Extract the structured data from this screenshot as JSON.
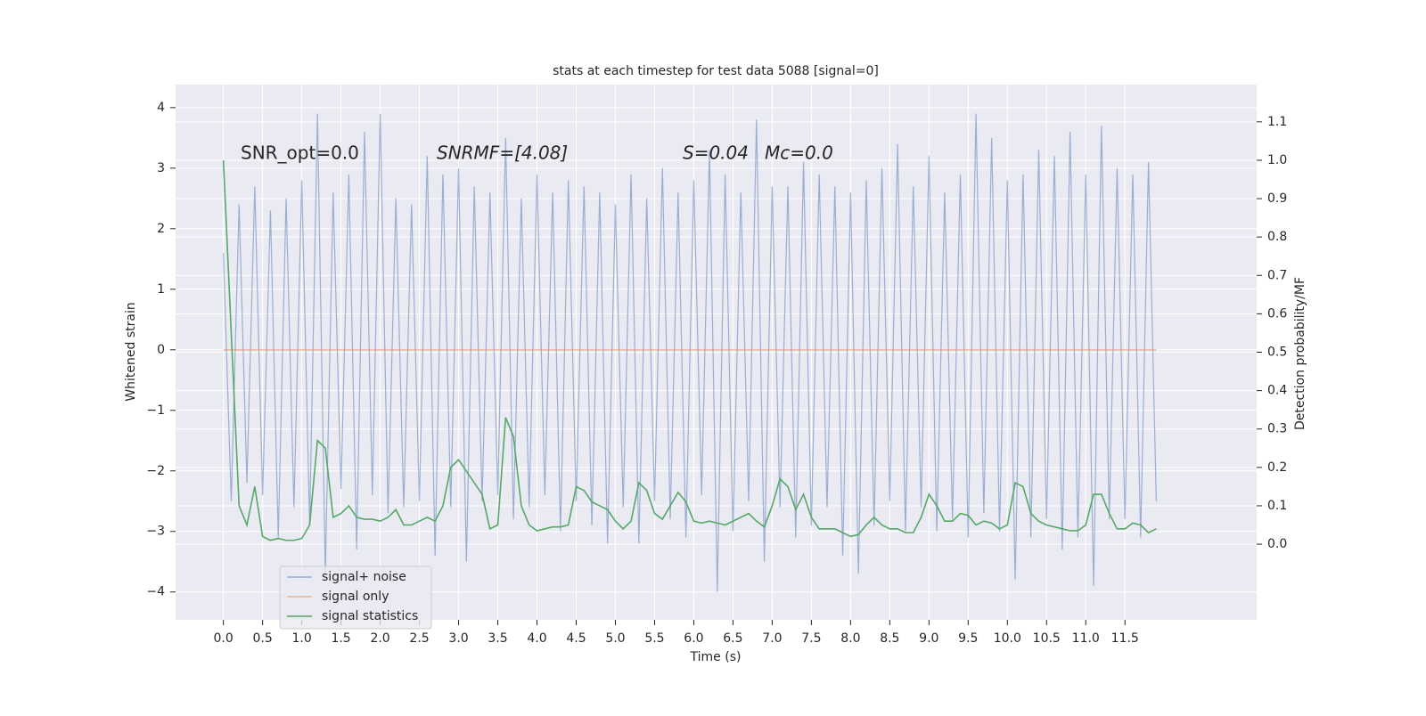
{
  "chart_data": {
    "type": "line",
    "title": "stats at each timestep for test data 5088 [signal=0]",
    "xlabel": "Time (s)",
    "ylabel": "Whitened strain",
    "y2label": "Detection probability/MF",
    "annotations": [
      "SNR_opt=0.0",
      "SNRMF=[4.08]",
      "S=0.04",
      "Mc=0.0"
    ],
    "grid": true,
    "background": "#eaeaf2",
    "legend": "lower left",
    "xlim": [
      -0.61,
      13.18
    ],
    "ylim": [
      -4.46,
      4.38
    ],
    "y2lim": [
      -0.197,
      1.197
    ],
    "xticks": [
      {
        "value": 0,
        "label": "0.0"
      },
      0.5,
      {
        "value": 1,
        "label": "1.0"
      },
      1.5,
      {
        "value": 2,
        "label": "2.0"
      },
      2.5,
      {
        "value": 3,
        "label": "3.0"
      },
      3.5,
      {
        "value": 4,
        "label": "4.0"
      },
      4.5,
      {
        "value": 5,
        "label": "5.0"
      },
      5.5,
      {
        "value": 6,
        "label": "6.0"
      },
      6.5,
      {
        "value": 7,
        "label": "7.0"
      },
      7.5,
      {
        "value": 8,
        "label": "8.0"
      },
      8.5,
      {
        "value": 9,
        "label": "9.0"
      },
      9.5,
      {
        "value": 10,
        "label": "10.0"
      },
      10.5,
      {
        "value": 11,
        "label": "11.0"
      },
      11.5
    ],
    "yticks": [
      {
        "value": -4,
        "label": "−4"
      },
      {
        "value": -3,
        "label": "−3"
      },
      {
        "value": -2,
        "label": "−2"
      },
      {
        "value": -1,
        "label": "−1"
      },
      0,
      1,
      2,
      3,
      4
    ],
    "y2ticks": [
      {
        "value": 0,
        "label": "0.0"
      },
      0.1,
      0.2,
      0.3,
      0.4,
      0.5,
      0.6,
      0.7,
      0.8,
      0.9,
      {
        "value": 1,
        "label": "1.0"
      },
      1.1
    ],
    "x": [
      0.0,
      0.1,
      0.2,
      0.3,
      0.4,
      0.5,
      0.6,
      0.7,
      0.8,
      0.9,
      1.0,
      1.1,
      1.2,
      1.3,
      1.4,
      1.5,
      1.6,
      1.7,
      1.8,
      1.9,
      2.0,
      2.1,
      2.2,
      2.3,
      2.4,
      2.5,
      2.6,
      2.7,
      2.8,
      2.9,
      3.0,
      3.1,
      3.2,
      3.3,
      3.4,
      3.5,
      3.6,
      3.7,
      3.8,
      3.9,
      4.0,
      4.1,
      4.2,
      4.3,
      4.4,
      4.5,
      4.6,
      4.7,
      4.8,
      4.9,
      5.0,
      5.1,
      5.2,
      5.3,
      5.4,
      5.5,
      5.6,
      5.7,
      5.8,
      5.9,
      6.0,
      6.1,
      6.2,
      6.3,
      6.4,
      6.5,
      6.6,
      6.7,
      6.8,
      6.9,
      7.0,
      7.1,
      7.2,
      7.3,
      7.4,
      7.5,
      7.6,
      7.7,
      7.8,
      7.9,
      8.0,
      8.1,
      8.2,
      8.3,
      8.4,
      8.5,
      8.6,
      8.7,
      8.8,
      8.9,
      9.0,
      9.1,
      9.2,
      9.3,
      9.4,
      9.5,
      9.6,
      9.7,
      9.8,
      9.9,
      10.0,
      10.1,
      10.2,
      10.3,
      10.4,
      10.5,
      10.6,
      10.7,
      10.8,
      10.9,
      11.0,
      11.1,
      11.2,
      11.3,
      11.4,
      11.5,
      11.6,
      11.7,
      11.8,
      11.9
    ],
    "series": [
      {
        "name": "signal+ noise",
        "color": "#4c72b0",
        "alpha": 0.5,
        "values": [
          1.6,
          -2.5,
          2.4,
          -2.2,
          2.7,
          -2.4,
          2.3,
          -3.1,
          2.5,
          -2.6,
          2.8,
          -2.9,
          3.9,
          -3.7,
          2.6,
          -2.3,
          2.9,
          -3.3,
          3.6,
          -2.4,
          3.9,
          -2.7,
          2.5,
          -2.6,
          2.4,
          -2.5,
          3.2,
          -3.4,
          2.9,
          -2.6,
          3.0,
          -3.5,
          2.7,
          -2.5,
          2.6,
          -2.4,
          3.5,
          -2.8,
          2.5,
          -2.6,
          2.9,
          -2.4,
          2.6,
          -3.0,
          2.8,
          -2.5,
          2.7,
          -2.9,
          2.6,
          -3.2,
          2.4,
          -2.6,
          2.9,
          -3.2,
          2.5,
          -2.5,
          3.0,
          -2.8,
          2.6,
          -3.1,
          2.8,
          -2.4,
          3.3,
          -4.0,
          2.9,
          -3.0,
          2.6,
          -2.5,
          3.8,
          -3.5,
          2.7,
          -2.6,
          2.7,
          -3.1,
          3.1,
          -2.9,
          2.9,
          -2.6,
          2.7,
          -3.4,
          2.6,
          -3.7,
          2.8,
          -2.9,
          3.0,
          -2.5,
          3.4,
          -3.0,
          2.7,
          -2.6,
          3.2,
          -3.0,
          2.6,
          -2.8,
          2.9,
          -3.1,
          3.9,
          -2.7,
          3.5,
          -3.0,
          2.8,
          -3.8,
          2.9,
          -3.1,
          3.3,
          -2.8,
          3.2,
          -3.3,
          3.6,
          -3.1,
          2.9,
          -3.9,
          3.7,
          -2.8,
          3.0,
          -2.8,
          2.9,
          -3.1,
          3.1,
          -2.5
        ]
      },
      {
        "name": "signal only",
        "color": "#dd8452",
        "alpha": 0.5,
        "values": [
          0,
          0,
          0,
          0,
          0,
          0,
          0,
          0,
          0,
          0,
          0,
          0,
          0,
          0,
          0,
          0,
          0,
          0,
          0,
          0,
          0,
          0,
          0,
          0,
          0,
          0,
          0,
          0,
          0,
          0,
          0,
          0,
          0,
          0,
          0,
          0,
          0,
          0,
          0,
          0,
          0,
          0,
          0,
          0,
          0,
          0,
          0,
          0,
          0,
          0,
          0,
          0,
          0,
          0,
          0,
          0,
          0,
          0,
          0,
          0,
          0,
          0,
          0,
          0,
          0,
          0,
          0,
          0,
          0,
          0,
          0,
          0,
          0,
          0,
          0,
          0,
          0,
          0,
          0,
          0,
          0,
          0,
          0,
          0,
          0,
          0,
          0,
          0,
          0,
          0,
          0,
          0,
          0,
          0,
          0,
          0,
          0,
          0,
          0,
          0,
          0,
          0,
          0,
          0,
          0,
          0,
          0,
          0,
          0,
          0,
          0,
          0,
          0,
          0,
          0,
          0,
          0,
          0,
          0,
          0
        ]
      },
      {
        "name": "signal statistics",
        "color": "#55a868",
        "alpha": 1,
        "axis": "y2",
        "values": [
          1.0,
          0.55,
          0.1,
          0.05,
          0.15,
          0.02,
          0.01,
          0.015,
          0.01,
          0.01,
          0.015,
          0.05,
          0.27,
          0.25,
          0.07,
          0.08,
          0.1,
          0.07,
          0.065,
          0.065,
          0.06,
          0.07,
          0.09,
          0.05,
          0.05,
          0.06,
          0.07,
          0.06,
          0.1,
          0.2,
          0.22,
          0.19,
          0.16,
          0.13,
          0.04,
          0.05,
          0.33,
          0.28,
          0.1,
          0.05,
          0.035,
          0.04,
          0.045,
          0.045,
          0.05,
          0.15,
          0.14,
          0.11,
          0.1,
          0.09,
          0.06,
          0.04,
          0.06,
          0.16,
          0.14,
          0.08,
          0.065,
          0.1,
          0.135,
          0.11,
          0.06,
          0.055,
          0.06,
          0.055,
          0.05,
          0.06,
          0.07,
          0.08,
          0.06,
          0.045,
          0.1,
          0.17,
          0.15,
          0.09,
          0.13,
          0.07,
          0.04,
          0.04,
          0.04,
          0.03,
          0.02,
          0.025,
          0.05,
          0.07,
          0.05,
          0.04,
          0.04,
          0.03,
          0.03,
          0.07,
          0.13,
          0.1,
          0.06,
          0.06,
          0.08,
          0.075,
          0.05,
          0.06,
          0.055,
          0.04,
          0.05,
          0.16,
          0.15,
          0.08,
          0.06,
          0.05,
          0.045,
          0.04,
          0.035,
          0.035,
          0.05,
          0.13,
          0.13,
          0.08,
          0.04,
          0.04,
          0.055,
          0.05,
          0.03,
          0.04
        ]
      }
    ]
  }
}
